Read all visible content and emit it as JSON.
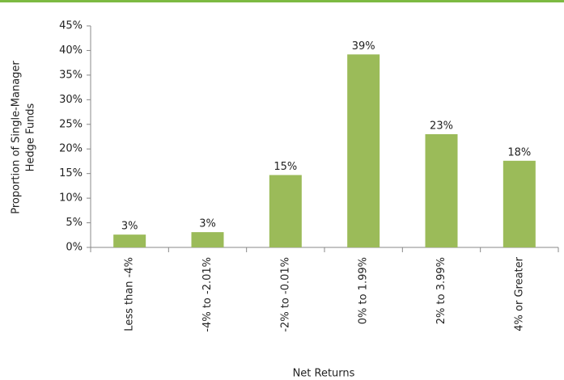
{
  "chart_data": {
    "type": "bar",
    "categories": [
      "Less than -4%",
      "-4% to -2.01%",
      "-2% to -0.01%",
      "0% to 1.99%",
      "2% to 3.99%",
      "4% or Greater"
    ],
    "values": [
      2.6,
      3.1,
      14.7,
      39.2,
      23.0,
      17.6
    ],
    "value_labels": [
      "3%",
      "3%",
      "15%",
      "39%",
      "23%",
      "18%"
    ],
    "color": "#9bbb59",
    "xlabel": "Net Returns",
    "ylabel": [
      "Proportion of Single-Manager",
      "Hedge Funds"
    ],
    "ylim": [
      0,
      45
    ],
    "yticks": [
      {
        "value": 0,
        "label": "0%"
      },
      {
        "value": 5,
        "label": "5%"
      },
      {
        "value": 10,
        "label": "10%"
      },
      {
        "value": 15,
        "label": "15%"
      },
      {
        "value": 20,
        "label": "20%"
      },
      {
        "value": 25,
        "label": "25%"
      },
      {
        "value": 30,
        "label": "30%"
      },
      {
        "value": 35,
        "label": "35%"
      },
      {
        "value": 40,
        "label": "40%"
      },
      {
        "value": 45,
        "label": "45%"
      }
    ],
    "grid": false
  }
}
